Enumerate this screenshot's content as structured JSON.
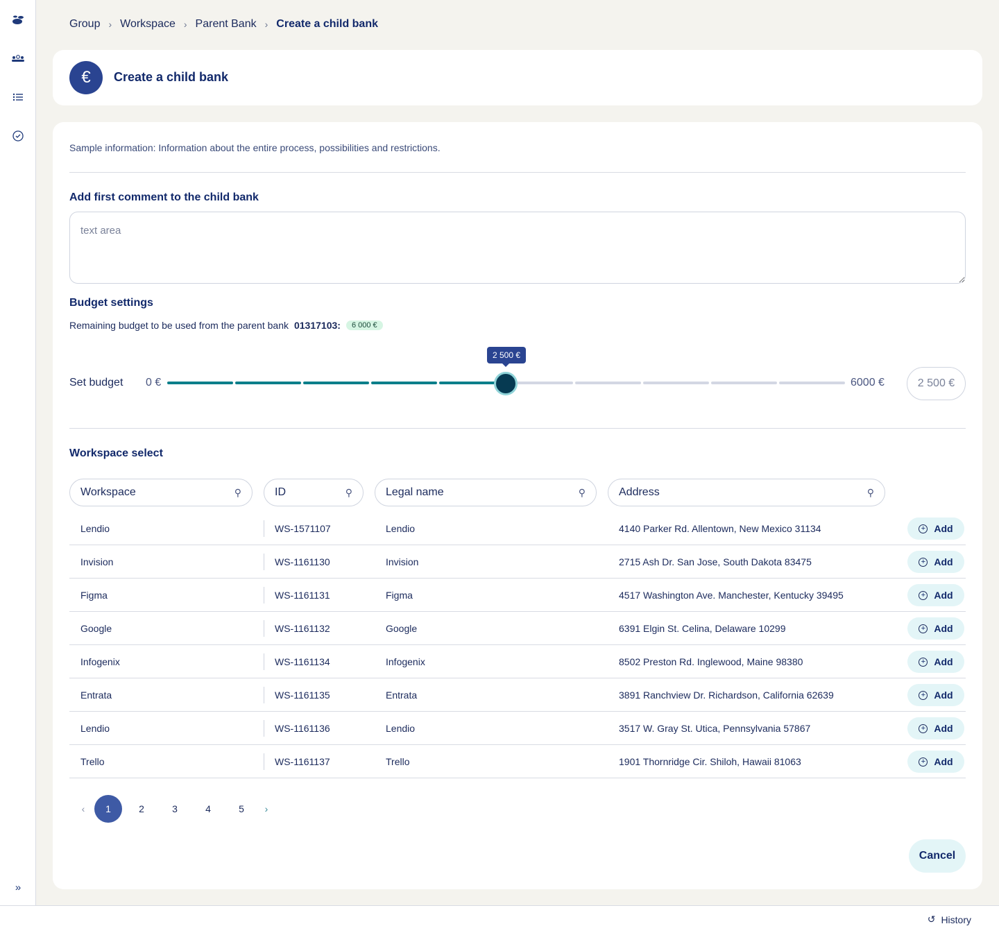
{
  "sidebar": {
    "icons": [
      "logo-icon",
      "users-icon",
      "list-icon",
      "check-circle-icon"
    ],
    "expand": "»"
  },
  "breadcrumb": [
    "Group",
    "Workspace",
    "Parent Bank",
    "Create a child bank"
  ],
  "header": {
    "title": "Create a child bank",
    "icon": "€"
  },
  "info": "Sample information: Information about the entire process, possibilities and restrictions.",
  "comment": {
    "title": "Add first comment to the child bank",
    "placeholder": "text area"
  },
  "budget": {
    "title": "Budget settings",
    "remaining_label": "Remaining budget to be used from the parent bank",
    "bank_id": "01317103:",
    "remaining": "6 000 €",
    "set_label": "Set budget",
    "min": "0 €",
    "max": "6000 €",
    "value": 2500,
    "tooltip": "2 500 €",
    "input_value": "2 500 €",
    "colors": {
      "filled": "#0b7f8a",
      "empty": "#d3d7e3"
    }
  },
  "workspace": {
    "title": "Workspace select",
    "filters": [
      "Workspace",
      "ID",
      "Legal name",
      "Address"
    ],
    "add_label": "Add",
    "rows": [
      [
        "Lendio",
        "WS-1571107",
        "Lendio",
        "4140 Parker Rd. Allentown, New Mexico 31134"
      ],
      [
        "Invision",
        "WS-1161130",
        "Invision",
        "2715 Ash Dr. San Jose, South Dakota 83475"
      ],
      [
        "Figma",
        "WS-1161131",
        "Figma",
        "4517 Washington Ave. Manchester, Kentucky 39495"
      ],
      [
        "Google",
        "WS-1161132",
        "Google",
        "6391 Elgin St. Celina, Delaware 10299"
      ],
      [
        "Infogenix",
        "WS-1161134",
        "Infogenix",
        "8502 Preston Rd. Inglewood, Maine 98380"
      ],
      [
        "Entrata",
        "WS-1161135",
        "Entrata",
        "3891 Ranchview Dr. Richardson, California 62639"
      ],
      [
        "Lendio",
        "WS-1161136",
        "Lendio",
        "3517 W. Gray St. Utica, Pennsylvania 57867"
      ],
      [
        "Trello",
        "WS-1161137",
        "Trello",
        "1901 Thornridge Cir. Shiloh, Hawaii 81063"
      ]
    ]
  },
  "pagination": {
    "pages": [
      "1",
      "2",
      "3",
      "4",
      "5"
    ],
    "current": "1"
  },
  "cancel": "Cancel",
  "history": "History"
}
